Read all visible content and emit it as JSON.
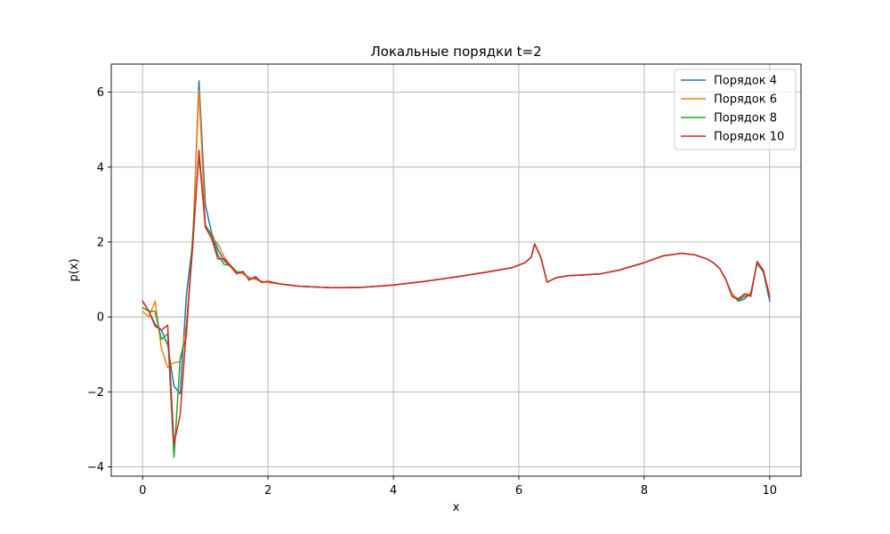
{
  "chart_data": {
    "type": "line",
    "title": "Локальные порядки t=2",
    "xlabel": "x",
    "ylabel": "p(x)",
    "xlim": [
      -0.5,
      10.5
    ],
    "ylim": [
      -4.25,
      6.75
    ],
    "xticks": [
      0,
      2,
      4,
      6,
      8,
      10
    ],
    "yticks": [
      -4,
      -2,
      0,
      2,
      4,
      6
    ],
    "xtick_labels": [
      "0",
      "2",
      "4",
      "6",
      "8",
      "10"
    ],
    "ytick_labels": [
      "−4",
      "−2",
      "0",
      "2",
      "4",
      "6"
    ],
    "grid": true,
    "legend_position": "top-right",
    "series": [
      {
        "name": "Порядок 4",
        "color": "#1f77b4",
        "points": [
          [
            0,
            0.42
          ],
          [
            0.1,
            0.15
          ],
          [
            0.2,
            -0.2
          ],
          [
            0.3,
            -0.35
          ],
          [
            0.4,
            -0.75
          ],
          [
            0.5,
            -1.85
          ],
          [
            0.6,
            -2.05
          ],
          [
            0.7,
            0.6
          ],
          [
            0.8,
            2.0
          ],
          [
            0.9,
            6.3
          ],
          [
            1.0,
            3.0
          ],
          [
            1.1,
            2.25
          ],
          [
            1.2,
            1.8
          ],
          [
            1.3,
            1.5
          ],
          [
            1.4,
            1.35
          ],
          [
            1.5,
            1.2
          ],
          [
            1.6,
            1.15
          ],
          [
            1.7,
            1.05
          ],
          [
            1.8,
            1.0
          ],
          [
            1.9,
            0.95
          ],
          [
            2.0,
            0.92
          ],
          [
            2.2,
            0.88
          ],
          [
            2.5,
            0.82
          ],
          [
            3.0,
            0.78
          ],
          [
            3.5,
            0.79
          ],
          [
            4.0,
            0.85
          ],
          [
            4.5,
            0.95
          ],
          [
            5.0,
            1.07
          ],
          [
            5.5,
            1.2
          ],
          [
            5.9,
            1.32
          ],
          [
            6.1,
            1.45
          ],
          [
            6.2,
            1.6
          ],
          [
            6.25,
            1.95
          ],
          [
            6.35,
            1.6
          ],
          [
            6.45,
            0.93
          ],
          [
            6.6,
            1.05
          ],
          [
            6.8,
            1.1
          ],
          [
            7.0,
            1.12
          ],
          [
            7.3,
            1.15
          ],
          [
            7.6,
            1.25
          ],
          [
            8.0,
            1.45
          ],
          [
            8.3,
            1.63
          ],
          [
            8.6,
            1.7
          ],
          [
            8.8,
            1.66
          ],
          [
            9.0,
            1.55
          ],
          [
            9.1,
            1.45
          ],
          [
            9.2,
            1.3
          ],
          [
            9.3,
            1.0
          ],
          [
            9.4,
            0.62
          ],
          [
            9.5,
            0.42
          ],
          [
            9.6,
            0.48
          ],
          [
            9.7,
            0.65
          ],
          [
            9.8,
            1.42
          ],
          [
            9.9,
            1.2
          ],
          [
            10.0,
            0.42
          ]
        ]
      },
      {
        "name": "Порядок 6",
        "color": "#ff7f0e",
        "points": [
          [
            0,
            0.15
          ],
          [
            0.1,
            0.0
          ],
          [
            0.2,
            0.42
          ],
          [
            0.3,
            -0.85
          ],
          [
            0.4,
            -1.35
          ],
          [
            0.5,
            -1.22
          ],
          [
            0.6,
            -1.2
          ],
          [
            0.7,
            -0.2
          ],
          [
            0.8,
            2.0
          ],
          [
            0.9,
            6.05
          ],
          [
            1.0,
            2.4
          ],
          [
            1.1,
            2.15
          ],
          [
            1.2,
            1.95
          ],
          [
            1.3,
            1.6
          ],
          [
            1.4,
            1.38
          ],
          [
            1.5,
            1.22
          ],
          [
            1.6,
            1.15
          ],
          [
            1.7,
            1.05
          ],
          [
            1.8,
            1.0
          ],
          [
            1.9,
            0.95
          ],
          [
            2.0,
            0.92
          ],
          [
            2.2,
            0.88
          ],
          [
            2.5,
            0.82
          ],
          [
            3.0,
            0.78
          ],
          [
            3.5,
            0.79
          ],
          [
            4.0,
            0.85
          ],
          [
            4.5,
            0.95
          ],
          [
            5.0,
            1.07
          ],
          [
            5.5,
            1.2
          ],
          [
            5.9,
            1.32
          ],
          [
            6.1,
            1.45
          ],
          [
            6.2,
            1.6
          ],
          [
            6.25,
            1.95
          ],
          [
            6.35,
            1.6
          ],
          [
            6.45,
            0.93
          ],
          [
            6.6,
            1.05
          ],
          [
            6.8,
            1.1
          ],
          [
            7.0,
            1.12
          ],
          [
            7.3,
            1.15
          ],
          [
            7.6,
            1.25
          ],
          [
            8.0,
            1.45
          ],
          [
            8.3,
            1.63
          ],
          [
            8.6,
            1.7
          ],
          [
            8.8,
            1.66
          ],
          [
            9.0,
            1.55
          ],
          [
            9.1,
            1.45
          ],
          [
            9.2,
            1.3
          ],
          [
            9.3,
            1.0
          ],
          [
            9.4,
            0.6
          ],
          [
            9.5,
            0.48
          ],
          [
            9.6,
            0.6
          ],
          [
            9.7,
            0.62
          ],
          [
            9.8,
            1.45
          ],
          [
            9.9,
            1.22
          ],
          [
            10.0,
            0.55
          ]
        ]
      },
      {
        "name": "Порядок 8",
        "color": "#2ca02c",
        "points": [
          [
            0,
            0.25
          ],
          [
            0.1,
            0.15
          ],
          [
            0.2,
            0.15
          ],
          [
            0.3,
            -0.6
          ],
          [
            0.4,
            -0.45
          ],
          [
            0.5,
            -3.75
          ],
          [
            0.6,
            -1.1
          ],
          [
            0.7,
            -0.5
          ],
          [
            0.8,
            2.2
          ],
          [
            0.9,
            4.3
          ],
          [
            1.0,
            2.45
          ],
          [
            1.1,
            2.2
          ],
          [
            1.2,
            1.65
          ],
          [
            1.3,
            1.4
          ],
          [
            1.4,
            1.38
          ],
          [
            1.5,
            1.2
          ],
          [
            1.6,
            1.2
          ],
          [
            1.7,
            1.0
          ],
          [
            1.8,
            1.05
          ],
          [
            1.9,
            0.92
          ],
          [
            2.0,
            0.95
          ],
          [
            2.2,
            0.88
          ],
          [
            2.5,
            0.82
          ],
          [
            3.0,
            0.78
          ],
          [
            3.5,
            0.79
          ],
          [
            4.0,
            0.85
          ],
          [
            4.5,
            0.95
          ],
          [
            5.0,
            1.07
          ],
          [
            5.5,
            1.2
          ],
          [
            5.9,
            1.32
          ],
          [
            6.1,
            1.45
          ],
          [
            6.2,
            1.6
          ],
          [
            6.25,
            1.95
          ],
          [
            6.35,
            1.6
          ],
          [
            6.45,
            0.93
          ],
          [
            6.6,
            1.05
          ],
          [
            6.8,
            1.1
          ],
          [
            7.0,
            1.12
          ],
          [
            7.3,
            1.15
          ],
          [
            7.6,
            1.25
          ],
          [
            8.0,
            1.45
          ],
          [
            8.3,
            1.63
          ],
          [
            8.6,
            1.7
          ],
          [
            8.8,
            1.66
          ],
          [
            9.0,
            1.55
          ],
          [
            9.1,
            1.45
          ],
          [
            9.2,
            1.3
          ],
          [
            9.3,
            1.0
          ],
          [
            9.4,
            0.55
          ],
          [
            9.5,
            0.45
          ],
          [
            9.6,
            0.55
          ],
          [
            9.7,
            0.58
          ],
          [
            9.8,
            1.48
          ],
          [
            9.9,
            1.2
          ],
          [
            10.0,
            0.5
          ]
        ]
      },
      {
        "name": "Порядок 10",
        "color": "#d62728",
        "points": [
          [
            0,
            0.42
          ],
          [
            0.1,
            0.15
          ],
          [
            0.2,
            -0.25
          ],
          [
            0.3,
            -0.35
          ],
          [
            0.4,
            -0.22
          ],
          [
            0.5,
            -3.4
          ],
          [
            0.6,
            -2.6
          ],
          [
            0.7,
            -0.3
          ],
          [
            0.8,
            1.9
          ],
          [
            0.9,
            4.45
          ],
          [
            1.0,
            2.4
          ],
          [
            1.1,
            2.1
          ],
          [
            1.2,
            1.55
          ],
          [
            1.3,
            1.55
          ],
          [
            1.4,
            1.35
          ],
          [
            1.5,
            1.15
          ],
          [
            1.6,
            1.22
          ],
          [
            1.7,
            0.98
          ],
          [
            1.8,
            1.08
          ],
          [
            1.9,
            0.92
          ],
          [
            2.0,
            0.95
          ],
          [
            2.2,
            0.88
          ],
          [
            2.5,
            0.82
          ],
          [
            3.0,
            0.78
          ],
          [
            3.5,
            0.79
          ],
          [
            4.0,
            0.85
          ],
          [
            4.5,
            0.95
          ],
          [
            5.0,
            1.07
          ],
          [
            5.5,
            1.2
          ],
          [
            5.9,
            1.32
          ],
          [
            6.1,
            1.45
          ],
          [
            6.2,
            1.6
          ],
          [
            6.25,
            1.95
          ],
          [
            6.35,
            1.6
          ],
          [
            6.45,
            0.93
          ],
          [
            6.6,
            1.05
          ],
          [
            6.8,
            1.1
          ],
          [
            7.0,
            1.12
          ],
          [
            7.3,
            1.15
          ],
          [
            7.6,
            1.25
          ],
          [
            8.0,
            1.45
          ],
          [
            8.3,
            1.63
          ],
          [
            8.6,
            1.7
          ],
          [
            8.8,
            1.66
          ],
          [
            9.0,
            1.55
          ],
          [
            9.1,
            1.45
          ],
          [
            9.2,
            1.3
          ],
          [
            9.3,
            1.0
          ],
          [
            9.4,
            0.55
          ],
          [
            9.5,
            0.48
          ],
          [
            9.6,
            0.62
          ],
          [
            9.7,
            0.55
          ],
          [
            9.8,
            1.48
          ],
          [
            9.9,
            1.25
          ],
          [
            10.0,
            0.55
          ]
        ]
      }
    ]
  }
}
